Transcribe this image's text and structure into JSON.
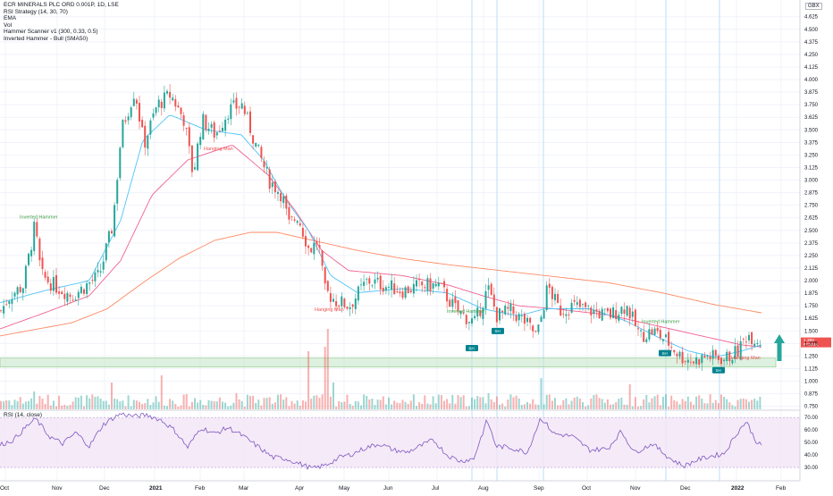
{
  "legend": {
    "title": "ECR MINERALS PLC ORD 0.001P, 1D, LSE",
    "lines": [
      "RSI Strategy (14, 30, 70)",
      "EMA",
      "Vol",
      "Hammer Scanner v1 (300, 0.33, 0.5)",
      "Inverted Hammer - Bull (SMA50)"
    ]
  },
  "currency": "GBX",
  "rsi_title": "RSI (14, close)",
  "price_badge": {
    "value": "1.390",
    "countdown": "07:29:54"
  },
  "labels": {
    "inv_hammer_1": "Inverted Hammer",
    "hanging_man_1": "Hanging Man",
    "hanging_man_2": "Hanging Man",
    "inv_hammer_2": "Inverted Hammer",
    "inv_hammer_3": "Inverted Hammer",
    "hanging_man_3": "Hanging Man",
    "bh": "BH",
    "sh": "SH",
    "sh_lower": "SH"
  },
  "colors": {
    "up": "#26a69a",
    "down": "#ef5350",
    "ema_fast": "#4fc3f7",
    "ema_mid": "#f06292",
    "ema_slow": "#ff8a65",
    "rsi_line": "#7e57c2",
    "rsi_band": "#f3e5f5",
    "support_zone": "#c8e6c9",
    "arrow": "#26a69a"
  },
  "chart_data": {
    "type": "candlestick",
    "price_axis_ticks": [
      "4.625",
      "4.500",
      "4.375",
      "4.250",
      "4.125",
      "4.000",
      "3.875",
      "3.750",
      "3.625",
      "3.500",
      "3.375",
      "3.250",
      "3.125",
      "3.000",
      "2.875",
      "2.750",
      "2.625",
      "2.500",
      "2.375",
      "2.250",
      "2.125",
      "2.000",
      "1.875",
      "1.750",
      "1.625",
      "1.500",
      "1.375",
      "1.250",
      "1.125",
      "1.000",
      "0.875",
      "0.750"
    ],
    "rsi_axis_ticks": [
      "70.00",
      "60.00",
      "50.00",
      "40.00",
      "30.00"
    ],
    "time_axis_ticks": [
      "Oct",
      "Nov",
      "Dec",
      "2021",
      "Feb",
      "Mar",
      "Apr",
      "May",
      "Jun",
      "Jul",
      "Aug",
      "Sep",
      "Oct",
      "Nov",
      "Dec",
      "2022",
      "Feb"
    ],
    "price_range": [
      0.72,
      4.72
    ],
    "rsi_range": [
      25,
      73
    ],
    "support_zone": [
      1.14,
      1.23
    ],
    "last_price": 1.39,
    "close_anchors": [
      [
        0,
        1.7
      ],
      [
        10,
        1.85
      ],
      [
        25,
        1.95
      ],
      [
        38,
        2.55
      ],
      [
        45,
        2.05
      ],
      [
        60,
        1.95
      ],
      [
        80,
        1.85
      ],
      [
        95,
        1.95
      ],
      [
        110,
        2.05
      ],
      [
        125,
        2.55
      ],
      [
        135,
        3.5
      ],
      [
        150,
        3.9
      ],
      [
        160,
        3.35
      ],
      [
        175,
        3.75
      ],
      [
        190,
        3.85
      ],
      [
        205,
        3.6
      ],
      [
        215,
        3.05
      ],
      [
        225,
        3.6
      ],
      [
        240,
        3.45
      ],
      [
        255,
        3.7
      ],
      [
        270,
        3.75
      ],
      [
        285,
        3.35
      ],
      [
        300,
        3.0
      ],
      [
        315,
        2.85
      ],
      [
        322,
        2.55
      ],
      [
        332,
        2.65
      ],
      [
        345,
        2.3
      ],
      [
        355,
        2.4
      ],
      [
        362,
        1.9
      ],
      [
        375,
        1.8
      ],
      [
        390,
        1.75
      ],
      [
        410,
        2.0
      ],
      [
        430,
        1.95
      ],
      [
        450,
        1.9
      ],
      [
        470,
        1.95
      ],
      [
        490,
        1.95
      ],
      [
        510,
        1.7
      ],
      [
        530,
        1.58
      ],
      [
        545,
        1.92
      ],
      [
        555,
        1.65
      ],
      [
        570,
        1.7
      ],
      [
        585,
        1.6
      ],
      [
        600,
        1.45
      ],
      [
        612,
        1.95
      ],
      [
        625,
        1.7
      ],
      [
        640,
        1.75
      ],
      [
        660,
        1.7
      ],
      [
        680,
        1.65
      ],
      [
        700,
        1.75
      ],
      [
        715,
        1.45
      ],
      [
        730,
        1.5
      ],
      [
        745,
        1.4
      ],
      [
        760,
        1.25
      ],
      [
        775,
        1.2
      ],
      [
        790,
        1.25
      ],
      [
        810,
        1.22
      ],
      [
        825,
        1.3
      ],
      [
        835,
        1.47
      ],
      [
        845,
        1.42
      ],
      [
        852,
        1.39
      ]
    ],
    "rsi_anchors": [
      [
        0,
        48
      ],
      [
        15,
        52
      ],
      [
        30,
        63
      ],
      [
        40,
        69
      ],
      [
        55,
        55
      ],
      [
        70,
        49
      ],
      [
        85,
        58
      ],
      [
        100,
        47
      ],
      [
        115,
        64
      ],
      [
        125,
        69
      ],
      [
        135,
        73
      ],
      [
        150,
        71
      ],
      [
        165,
        72
      ],
      [
        180,
        68
      ],
      [
        195,
        60
      ],
      [
        210,
        46
      ],
      [
        225,
        62
      ],
      [
        240,
        57
      ],
      [
        255,
        62
      ],
      [
        270,
        56
      ],
      [
        290,
        46
      ],
      [
        305,
        38
      ],
      [
        320,
        37
      ],
      [
        335,
        33
      ],
      [
        350,
        29
      ],
      [
        365,
        32
      ],
      [
        380,
        38
      ],
      [
        395,
        41
      ],
      [
        410,
        46
      ],
      [
        425,
        49
      ],
      [
        440,
        44
      ],
      [
        455,
        42
      ],
      [
        470,
        47
      ],
      [
        485,
        52
      ],
      [
        500,
        40
      ],
      [
        515,
        35
      ],
      [
        530,
        37
      ],
      [
        545,
        68
      ],
      [
        555,
        47
      ],
      [
        570,
        46
      ],
      [
        590,
        42
      ],
      [
        605,
        70
      ],
      [
        620,
        57
      ],
      [
        640,
        55
      ],
      [
        660,
        44
      ],
      [
        680,
        45
      ],
      [
        695,
        59
      ],
      [
        710,
        42
      ],
      [
        730,
        49
      ],
      [
        750,
        37
      ],
      [
        765,
        31
      ],
      [
        780,
        36
      ],
      [
        795,
        39
      ],
      [
        810,
        41
      ],
      [
        825,
        58
      ],
      [
        835,
        67
      ],
      [
        845,
        52
      ],
      [
        852,
        47
      ]
    ],
    "ema_fast_anchors": [
      [
        0,
        1.78
      ],
      [
        50,
        1.9
      ],
      [
        100,
        2.0
      ],
      [
        135,
        2.6
      ],
      [
        160,
        3.4
      ],
      [
        190,
        3.65
      ],
      [
        230,
        3.5
      ],
      [
        270,
        3.45
      ],
      [
        295,
        3.2
      ],
      [
        320,
        2.8
      ],
      [
        345,
        2.5
      ],
      [
        370,
        2.05
      ],
      [
        400,
        1.88
      ],
      [
        450,
        1.92
      ],
      [
        500,
        1.88
      ],
      [
        540,
        1.72
      ],
      [
        580,
        1.65
      ],
      [
        610,
        1.72
      ],
      [
        660,
        1.72
      ],
      [
        700,
        1.6
      ],
      [
        740,
        1.42
      ],
      [
        770,
        1.3
      ],
      [
        800,
        1.24
      ],
      [
        830,
        1.3
      ],
      [
        852,
        1.36
      ]
    ],
    "ema_mid_anchors": [
      [
        0,
        1.52
      ],
      [
        50,
        1.68
      ],
      [
        100,
        1.85
      ],
      [
        135,
        2.2
      ],
      [
        170,
        2.85
      ],
      [
        210,
        3.2
      ],
      [
        260,
        3.35
      ],
      [
        300,
        3.05
      ],
      [
        330,
        2.7
      ],
      [
        360,
        2.3
      ],
      [
        390,
        2.1
      ],
      [
        450,
        2.05
      ],
      [
        500,
        1.96
      ],
      [
        540,
        1.85
      ],
      [
        580,
        1.75
      ],
      [
        620,
        1.72
      ],
      [
        680,
        1.66
      ],
      [
        720,
        1.58
      ],
      [
        760,
        1.5
      ],
      [
        800,
        1.42
      ],
      [
        830,
        1.36
      ],
      [
        852,
        1.34
      ]
    ],
    "ema_slow_anchors": [
      [
        0,
        1.45
      ],
      [
        80,
        1.58
      ],
      [
        120,
        1.72
      ],
      [
        160,
        1.98
      ],
      [
        200,
        2.22
      ],
      [
        240,
        2.4
      ],
      [
        280,
        2.48
      ],
      [
        310,
        2.48
      ],
      [
        350,
        2.4
      ],
      [
        400,
        2.3
      ],
      [
        450,
        2.22
      ],
      [
        500,
        2.16
      ],
      [
        560,
        2.1
      ],
      [
        620,
        2.04
      ],
      [
        680,
        1.98
      ],
      [
        740,
        1.88
      ],
      [
        800,
        1.76
      ],
      [
        852,
        1.68
      ]
    ],
    "volume_spikes": [
      [
        38,
        0.2
      ],
      [
        125,
        0.3
      ],
      [
        180,
        0.38
      ],
      [
        262,
        0.18
      ],
      [
        345,
        0.65
      ],
      [
        362,
        0.7
      ],
      [
        366,
        0.9
      ],
      [
        372,
        0.3
      ],
      [
        410,
        0.15
      ],
      [
        545,
        0.18
      ],
      [
        605,
        0.35
      ],
      [
        705,
        0.28
      ]
    ]
  }
}
